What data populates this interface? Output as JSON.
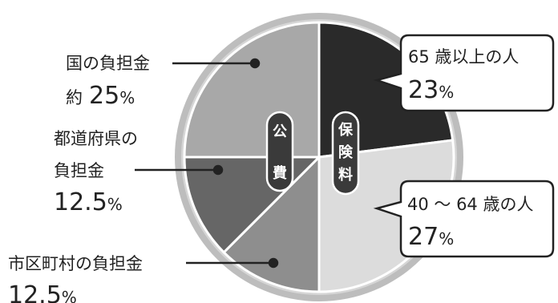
{
  "chart_data": {
    "type": "pie",
    "slices": [
      {
        "label": "65歳以上の人",
        "value": 23,
        "group": "保険料",
        "color": "#2a2a2a"
      },
      {
        "label": "40～64歳の人",
        "value": 27,
        "group": "保険料",
        "color": "#dcdcdc"
      },
      {
        "label": "市区町村の負担金",
        "value": 12.5,
        "group": "公費",
        "color": "#8e8e8e"
      },
      {
        "label": "都道府県の負担金",
        "value": 12.5,
        "group": "公費",
        "color": "#666666"
      },
      {
        "label": "国の負担金",
        "value": 25,
        "group": "公費",
        "color": "#a8a8a8"
      }
    ]
  },
  "labels": {
    "kuni_line1": "国の負担金",
    "kuni_prefix": "約",
    "kuni_num": "25",
    "kuni_unit": "%",
    "todo_line1": "都道府県の",
    "todo_line2": "負担金",
    "todo_num": "12.5",
    "todo_unit": "%",
    "shiku_line1": "市区町村の負担金",
    "shiku_num": "12.5",
    "shiku_unit": "%",
    "s65_line1": "65 歳以上の人",
    "s65_num": "23",
    "s65_unit": "%",
    "s40_line1": "40 ～ 64 歳の人",
    "s40_num": "27",
    "s40_unit": "%"
  },
  "pills": {
    "kouhi_top": "公",
    "kouhi_bottom": "費",
    "hoken_1": "保",
    "hoken_2": "険",
    "hoken_3": "料"
  }
}
